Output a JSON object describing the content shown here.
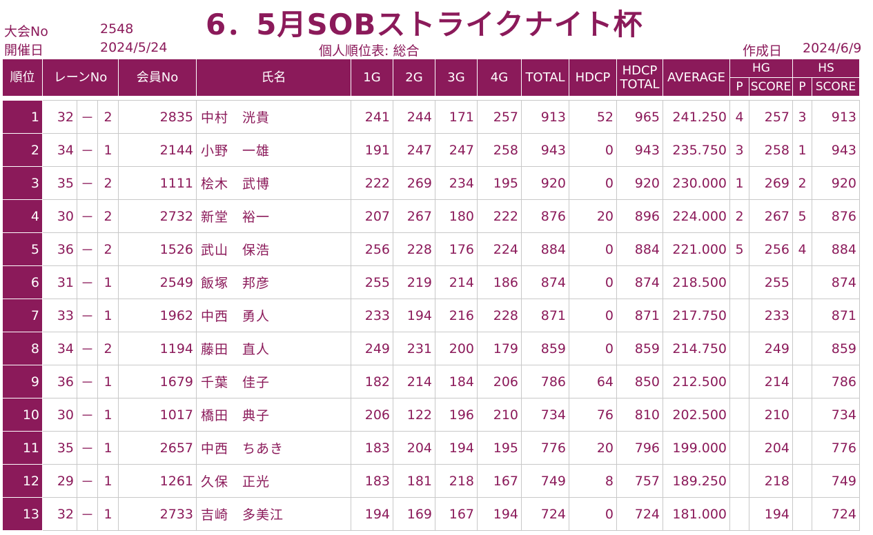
{
  "header": {
    "tournament_no_label": "大会No",
    "tournament_no": "2548",
    "date_label": "開催日",
    "date": "2024/5/24",
    "title": "6．5月SOBストライクナイト杯",
    "subtitle": "個人順位表: 総合",
    "created_label": "作成日",
    "created_date": "2024/6/9"
  },
  "columns": {
    "rank": "順位",
    "lane": "レーンNo",
    "member": "会員No",
    "name": "氏名",
    "g1": "1G",
    "g2": "2G",
    "g3": "3G",
    "g4": "4G",
    "total": "TOTAL",
    "hdcp": "HDCP",
    "hdcp_total_1": "HDCP",
    "hdcp_total_2": "TOTAL",
    "average": "AVERAGE",
    "hg": "HG",
    "hs": "HS",
    "p": "P",
    "score": "SCORE"
  },
  "rows": [
    {
      "rank": "1",
      "lane": "32",
      "dash": "－",
      "lane_sub": "2",
      "member": "2835",
      "name": "中村　洸貴",
      "g1": "241",
      "g2": "244",
      "g3": "171",
      "g4": "257",
      "total": "913",
      "hdcp": "52",
      "hdcp_total": "965",
      "average": "241.250",
      "hg_p": "4",
      "hg_score": "257",
      "hs_p": "3",
      "hs_score": "913"
    },
    {
      "rank": "2",
      "lane": "34",
      "dash": "－",
      "lane_sub": "1",
      "member": "2144",
      "name": "小野　一雄",
      "g1": "191",
      "g2": "247",
      "g3": "247",
      "g4": "258",
      "total": "943",
      "hdcp": "0",
      "hdcp_total": "943",
      "average": "235.750",
      "hg_p": "3",
      "hg_score": "258",
      "hs_p": "1",
      "hs_score": "943"
    },
    {
      "rank": "3",
      "lane": "35",
      "dash": "－",
      "lane_sub": "2",
      "member": "1111",
      "name": "桧木　武博",
      "g1": "222",
      "g2": "269",
      "g3": "234",
      "g4": "195",
      "total": "920",
      "hdcp": "0",
      "hdcp_total": "920",
      "average": "230.000",
      "hg_p": "1",
      "hg_score": "269",
      "hs_p": "2",
      "hs_score": "920"
    },
    {
      "rank": "4",
      "lane": "30",
      "dash": "－",
      "lane_sub": "2",
      "member": "2732",
      "name": "新堂　裕一",
      "g1": "207",
      "g2": "267",
      "g3": "180",
      "g4": "222",
      "total": "876",
      "hdcp": "20",
      "hdcp_total": "896",
      "average": "224.000",
      "hg_p": "2",
      "hg_score": "267",
      "hs_p": "5",
      "hs_score": "876"
    },
    {
      "rank": "5",
      "lane": "36",
      "dash": "－",
      "lane_sub": "2",
      "member": "1526",
      "name": "武山　保浩",
      "g1": "256",
      "g2": "228",
      "g3": "176",
      "g4": "224",
      "total": "884",
      "hdcp": "0",
      "hdcp_total": "884",
      "average": "221.000",
      "hg_p": "5",
      "hg_score": "256",
      "hs_p": "4",
      "hs_score": "884"
    },
    {
      "rank": "6",
      "lane": "31",
      "dash": "－",
      "lane_sub": "1",
      "member": "2549",
      "name": "飯塚　邦彦",
      "g1": "255",
      "g2": "219",
      "g3": "214",
      "g4": "186",
      "total": "874",
      "hdcp": "0",
      "hdcp_total": "874",
      "average": "218.500",
      "hg_p": "",
      "hg_score": "255",
      "hs_p": "",
      "hs_score": "874"
    },
    {
      "rank": "7",
      "lane": "33",
      "dash": "－",
      "lane_sub": "1",
      "member": "1962",
      "name": "中西　勇人",
      "g1": "233",
      "g2": "194",
      "g3": "216",
      "g4": "228",
      "total": "871",
      "hdcp": "0",
      "hdcp_total": "871",
      "average": "217.750",
      "hg_p": "",
      "hg_score": "233",
      "hs_p": "",
      "hs_score": "871"
    },
    {
      "rank": "8",
      "lane": "34",
      "dash": "－",
      "lane_sub": "2",
      "member": "1194",
      "name": "藤田　直人",
      "g1": "249",
      "g2": "231",
      "g3": "200",
      "g4": "179",
      "total": "859",
      "hdcp": "0",
      "hdcp_total": "859",
      "average": "214.750",
      "hg_p": "",
      "hg_score": "249",
      "hs_p": "",
      "hs_score": "859"
    },
    {
      "rank": "9",
      "lane": "36",
      "dash": "－",
      "lane_sub": "1",
      "member": "1679",
      "name": "千葉　佳子",
      "g1": "182",
      "g2": "214",
      "g3": "184",
      "g4": "206",
      "total": "786",
      "hdcp": "64",
      "hdcp_total": "850",
      "average": "212.500",
      "hg_p": "",
      "hg_score": "214",
      "hs_p": "",
      "hs_score": "786"
    },
    {
      "rank": "10",
      "lane": "30",
      "dash": "－",
      "lane_sub": "1",
      "member": "1017",
      "name": "橋田　典子",
      "g1": "206",
      "g2": "122",
      "g3": "196",
      "g4": "210",
      "total": "734",
      "hdcp": "76",
      "hdcp_total": "810",
      "average": "202.500",
      "hg_p": "",
      "hg_score": "210",
      "hs_p": "",
      "hs_score": "734"
    },
    {
      "rank": "11",
      "lane": "35",
      "dash": "－",
      "lane_sub": "1",
      "member": "2657",
      "name": "中西　ちあき",
      "g1": "183",
      "g2": "204",
      "g3": "194",
      "g4": "195",
      "total": "776",
      "hdcp": "20",
      "hdcp_total": "796",
      "average": "199.000",
      "hg_p": "",
      "hg_score": "204",
      "hs_p": "",
      "hs_score": "776"
    },
    {
      "rank": "12",
      "lane": "29",
      "dash": "－",
      "lane_sub": "1",
      "member": "1261",
      "name": "久保　正光",
      "g1": "183",
      "g2": "181",
      "g3": "218",
      "g4": "167",
      "total": "749",
      "hdcp": "8",
      "hdcp_total": "757",
      "average": "189.250",
      "hg_p": "",
      "hg_score": "218",
      "hs_p": "",
      "hs_score": "749"
    },
    {
      "rank": "13",
      "lane": "32",
      "dash": "－",
      "lane_sub": "1",
      "member": "2733",
      "name": "吉崎　多美江",
      "g1": "194",
      "g2": "169",
      "g3": "167",
      "g4": "194",
      "total": "724",
      "hdcp": "0",
      "hdcp_total": "724",
      "average": "181.000",
      "hg_p": "",
      "hg_score": "194",
      "hs_p": "",
      "hs_score": "724"
    }
  ]
}
